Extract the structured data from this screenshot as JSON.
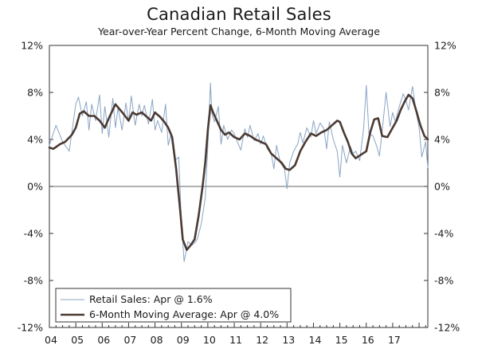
{
  "chart_data": {
    "type": "line",
    "title": "Canadian Retail Sales",
    "subtitle": "Year-over-Year Percent Change, 6-Month Moving Average",
    "xlabel": "",
    "ylabel": "",
    "ylim": [
      -12,
      12
    ],
    "yticks": [
      -12,
      -8,
      -4,
      0,
      4,
      8,
      12
    ],
    "ytick_labels": [
      "-12%",
      "-8%",
      "-4%",
      "0%",
      "4%",
      "8%",
      "12%"
    ],
    "xlim": [
      2004.0,
      2018.33
    ],
    "x_categories": [
      "04",
      "05",
      "06",
      "07",
      "08",
      "09",
      "10",
      "11",
      "12",
      "13",
      "14",
      "15",
      "16",
      "17"
    ],
    "grid": false,
    "legend_position": "bottom-left",
    "series": [
      {
        "name": "Retail Sales: Apr @ 1.6%",
        "color": "#8aa4c4",
        "width": 1,
        "x": [
          2004.0,
          2004.25,
          2004.5,
          2004.75,
          2005.0,
          2005.1,
          2005.25,
          2005.4,
          2005.5,
          2005.6,
          2005.75,
          2005.9,
          2006.0,
          2006.1,
          2006.25,
          2006.4,
          2006.5,
          2006.6,
          2006.75,
          2006.9,
          2007.0,
          2007.1,
          2007.25,
          2007.4,
          2007.5,
          2007.6,
          2007.75,
          2007.9,
          2008.0,
          2008.1,
          2008.25,
          2008.4,
          2008.5,
          2008.6,
          2008.75,
          2008.9,
          2009.0,
          2009.1,
          2009.25,
          2009.4,
          2009.5,
          2009.6,
          2009.75,
          2009.9,
          2010.0,
          2010.1,
          2010.15,
          2010.25,
          2010.4,
          2010.5,
          2010.6,
          2010.75,
          2010.9,
          2011.0,
          2011.1,
          2011.25,
          2011.4,
          2011.5,
          2011.6,
          2011.75,
          2011.9,
          2012.0,
          2012.1,
          2012.25,
          2012.4,
          2012.5,
          2012.6,
          2012.75,
          2012.9,
          2013.0,
          2013.1,
          2013.25,
          2013.4,
          2013.5,
          2013.6,
          2013.75,
          2013.9,
          2014.0,
          2014.1,
          2014.25,
          2014.4,
          2014.5,
          2014.6,
          2014.75,
          2014.9,
          2015.0,
          2015.1,
          2015.25,
          2015.4,
          2015.5,
          2015.6,
          2015.75,
          2015.9,
          2016.0,
          2016.1,
          2016.25,
          2016.4,
          2016.5,
          2016.6,
          2016.75,
          2016.9,
          2017.0,
          2017.1,
          2017.25,
          2017.4,
          2017.5,
          2017.6,
          2017.75,
          2017.9,
          2018.0,
          2018.1,
          2018.25,
          2018.33
        ],
        "y": [
          3.5,
          5.2,
          3.8,
          3.0,
          7.0,
          7.6,
          6.0,
          7.2,
          4.8,
          7.0,
          5.6,
          7.8,
          4.5,
          6.8,
          4.2,
          7.5,
          5.0,
          6.7,
          4.8,
          7.1,
          5.5,
          7.7,
          5.2,
          7.0,
          6.0,
          6.9,
          5.3,
          7.4,
          4.8,
          5.6,
          4.6,
          7.0,
          3.5,
          4.4,
          2.2,
          2.5,
          -3.0,
          -6.4,
          -4.7,
          -5.0,
          -4.8,
          -4.5,
          -3.2,
          -1.0,
          3.5,
          8.8,
          6.2,
          5.5,
          6.8,
          3.6,
          5.2,
          4.0,
          4.8,
          4.5,
          3.9,
          3.1,
          4.9,
          4.2,
          5.2,
          3.9,
          4.5,
          3.6,
          4.3,
          3.2,
          2.8,
          1.5,
          3.5,
          2.0,
          1.5,
          -0.2,
          2.0,
          3.0,
          3.6,
          4.6,
          3.7,
          5.0,
          4.2,
          5.6,
          4.5,
          5.4,
          4.9,
          3.2,
          5.5,
          4.0,
          3.0,
          0.8,
          3.5,
          2.0,
          3.4,
          2.8,
          3.0,
          2.2,
          5.0,
          8.6,
          4.5,
          4.3,
          3.4,
          2.6,
          4.7,
          8.0,
          5.1,
          6.3,
          5.5,
          6.8,
          7.9,
          7.3,
          6.5,
          8.5,
          6.2,
          5.0,
          2.5,
          3.8,
          1.6
        ]
      },
      {
        "name": "6-Month Moving Average: Apr @ 4.0%",
        "color": "#4a3a33",
        "width": 2.6,
        "x": [
          2004.0,
          2004.15,
          2004.4,
          2004.6,
          2004.85,
          2005.0,
          2005.15,
          2005.3,
          2005.5,
          2005.7,
          2005.9,
          2006.1,
          2006.25,
          2006.5,
          2006.65,
          2006.8,
          2007.0,
          2007.15,
          2007.3,
          2007.5,
          2007.65,
          2007.85,
          2008.0,
          2008.2,
          2008.35,
          2008.5,
          2008.65,
          2008.8,
          2008.95,
          2009.05,
          2009.2,
          2009.35,
          2009.5,
          2009.65,
          2009.8,
          2009.9,
          2010.0,
          2010.1,
          2010.2,
          2010.3,
          2010.5,
          2010.65,
          2010.8,
          2011.0,
          2011.2,
          2011.4,
          2011.6,
          2011.8,
          2012.0,
          2012.2,
          2012.4,
          2012.6,
          2012.8,
          2012.95,
          2013.1,
          2013.3,
          2013.5,
          2013.7,
          2013.9,
          2014.1,
          2014.3,
          2014.5,
          2014.7,
          2014.9,
          2015.0,
          2015.15,
          2015.3,
          2015.45,
          2015.6,
          2015.8,
          2016.0,
          2016.15,
          2016.3,
          2016.45,
          2016.6,
          2016.8,
          2017.0,
          2017.15,
          2017.3,
          2017.45,
          2017.6,
          2017.75,
          2017.9,
          2018.05,
          2018.2,
          2018.33
        ],
        "y": [
          3.3,
          3.2,
          3.6,
          3.8,
          4.4,
          5.0,
          6.2,
          6.4,
          6.0,
          6.0,
          5.6,
          5.0,
          5.8,
          7.0,
          6.6,
          6.2,
          5.6,
          6.3,
          6.1,
          6.3,
          6.0,
          5.6,
          6.3,
          5.9,
          5.5,
          5.0,
          4.2,
          1.5,
          -2.0,
          -4.5,
          -5.4,
          -5.0,
          -4.5,
          -2.5,
          0.0,
          2.0,
          4.8,
          6.9,
          6.3,
          5.8,
          4.8,
          4.4,
          4.6,
          4.2,
          4.0,
          4.5,
          4.3,
          4.0,
          3.8,
          3.6,
          2.8,
          2.4,
          2.0,
          1.5,
          1.4,
          1.8,
          3.0,
          3.8,
          4.5,
          4.3,
          4.6,
          4.8,
          5.2,
          5.6,
          5.5,
          4.6,
          3.8,
          2.8,
          2.4,
          2.7,
          3.0,
          4.6,
          5.7,
          5.8,
          4.3,
          4.2,
          5.0,
          5.6,
          6.5,
          7.2,
          7.8,
          7.5,
          6.4,
          5.2,
          4.3,
          4.0
        ]
      }
    ]
  }
}
